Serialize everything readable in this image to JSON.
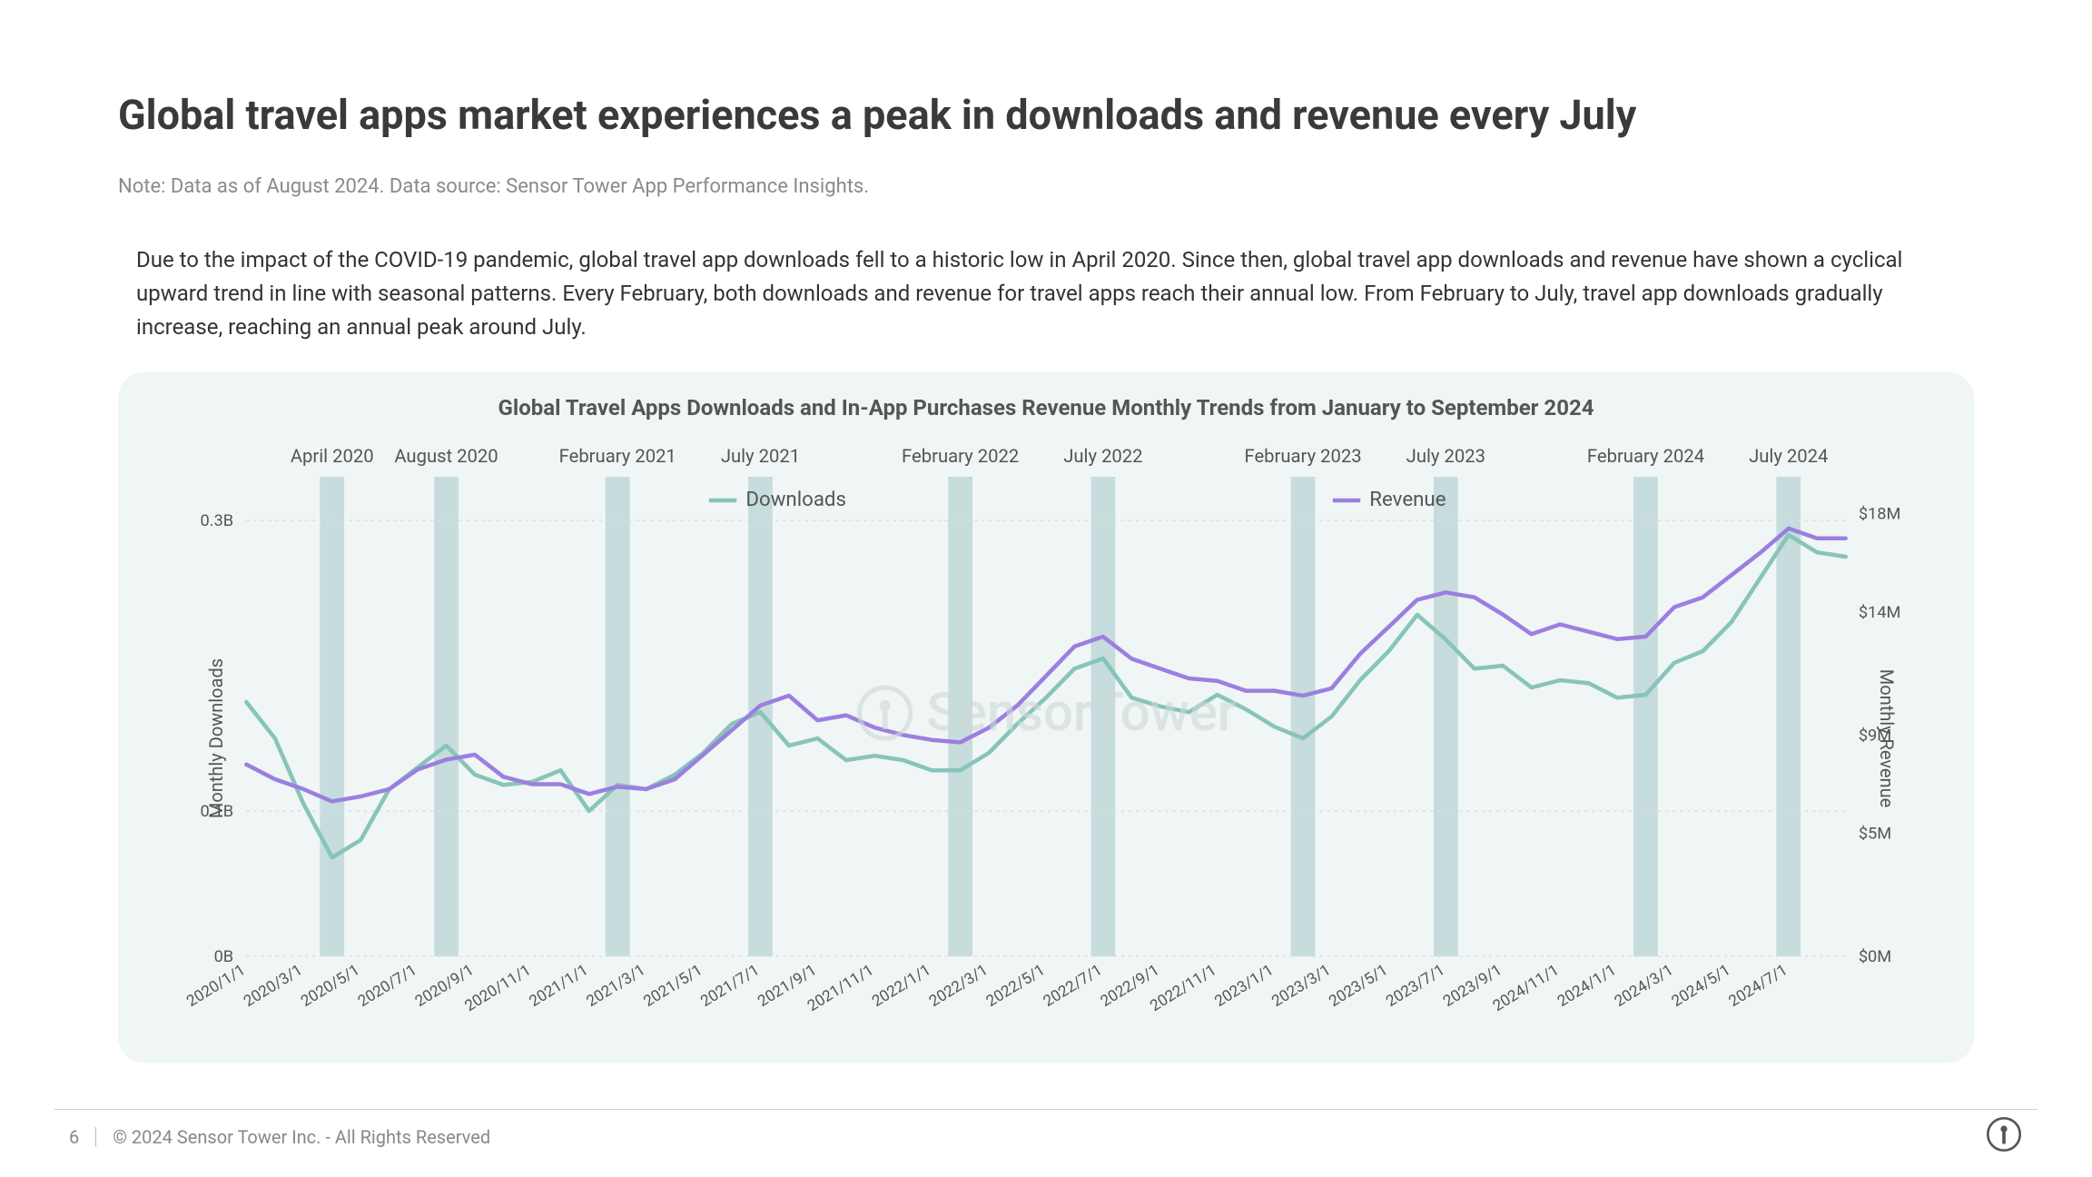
{
  "title": "Global travel apps market experiences a peak in downloads and revenue every July",
  "note": "Note: Data as of August 2024. Data source: Sensor Tower App Performance Insights.",
  "body": "Due to the impact of the COVID-19 pandemic, global travel app downloads fell to a historic low in April 2020. Since then, global travel app downloads and revenue have shown a cyclical upward trend in line with seasonal patterns. Every February, both downloads and revenue for travel apps reach their annual low. From February to July, travel app downloads gradually increase, reaching an annual peak around July.",
  "chart": {
    "type": "dual-axis-line",
    "title": "Global Travel Apps Downloads and In-App Purchases Revenue Monthly Trends from January to September 2024",
    "background_color": "#f0f5f5",
    "grid_color": "#d8e0e0",
    "highlight_bar_color": "#c7dcdc",
    "text_color": "#555555",
    "axis_fontsize": 18,
    "legend_fontsize": 22,
    "series": {
      "downloads": {
        "label": "Downloads",
        "color": "#87c4b9",
        "width": 4.5
      },
      "revenue": {
        "label": "Revenue",
        "color": "#9b7fe0",
        "width": 4.5
      }
    },
    "y_left": {
      "label": "Monthly Downloads",
      "ticks": [
        0,
        0.1,
        0.3
      ],
      "tick_labels": [
        "0B",
        "0.1B",
        "0.3B"
      ],
      "min": 0,
      "max": 0.33
    },
    "y_right": {
      "label": "Monthly Revenue",
      "ticks": [
        0,
        5,
        9,
        14,
        18
      ],
      "tick_labels": [
        "$0M",
        "$5M",
        "$9M",
        "$14M",
        "$18M"
      ],
      "min": 0,
      "max": 19.5
    },
    "x_ticks": [
      "2020/1/1",
      "2020/3/1",
      "2020/5/1",
      "2020/7/1",
      "2020/9/1",
      "2020/11/1",
      "2021/1/1",
      "2021/3/1",
      "2021/5/1",
      "2021/7/1",
      "2021/9/1",
      "2021/11/1",
      "2022/1/1",
      "2022/3/1",
      "2022/5/1",
      "2022/7/1",
      "2022/9/1",
      "2022/11/1",
      "2023/1/1",
      "2023/3/1",
      "2023/5/1",
      "2023/7/1",
      "2023/9/1",
      "2024/11/1",
      "2024/1/1",
      "2024/3/1",
      "2024/5/1",
      "2024/7/1"
    ],
    "top_annotations": [
      {
        "idx": 3,
        "label": "April 2020"
      },
      {
        "idx": 7,
        "label": "August 2020"
      },
      {
        "idx": 13,
        "label": "February 2021"
      },
      {
        "idx": 18,
        "label": "July 2021"
      },
      {
        "idx": 25,
        "label": "February 2022"
      },
      {
        "idx": 30,
        "label": "July 2022"
      },
      {
        "idx": 37,
        "label": "February 2023"
      },
      {
        "idx": 42,
        "label": "July 2023"
      },
      {
        "idx": 49,
        "label": "February 2024"
      },
      {
        "idx": 54,
        "label": "July 2024"
      }
    ],
    "downloads_B": [
      0.175,
      0.15,
      0.105,
      0.068,
      0.08,
      0.115,
      0.13,
      0.145,
      0.125,
      0.118,
      0.12,
      0.128,
      0.1,
      0.118,
      0.115,
      0.125,
      0.14,
      0.16,
      0.168,
      0.145,
      0.15,
      0.135,
      0.138,
      0.135,
      0.128,
      0.128,
      0.14,
      0.16,
      0.178,
      0.198,
      0.205,
      0.178,
      0.172,
      0.168,
      0.18,
      0.17,
      0.158,
      0.15,
      0.165,
      0.19,
      0.21,
      0.235,
      0.218,
      0.198,
      0.2,
      0.185,
      0.19,
      0.188,
      0.178,
      0.18,
      0.202,
      0.21,
      0.23,
      0.26,
      0.29,
      0.278,
      0.275
    ],
    "revenue_M": [
      7.8,
      7.2,
      6.8,
      6.3,
      6.5,
      6.8,
      7.6,
      8.0,
      8.2,
      7.3,
      7.0,
      7.0,
      6.6,
      6.9,
      6.8,
      7.2,
      8.2,
      9.2,
      10.2,
      10.6,
      9.6,
      9.8,
      9.3,
      9.0,
      8.8,
      8.7,
      9.3,
      10.2,
      11.4,
      12.6,
      13.0,
      12.1,
      11.7,
      11.3,
      11.2,
      10.8,
      10.8,
      10.6,
      10.9,
      12.3,
      13.4,
      14.5,
      14.8,
      14.6,
      13.9,
      13.1,
      13.5,
      13.2,
      12.9,
      13.0,
      14.2,
      14.6,
      15.5,
      16.4,
      17.4,
      17.0,
      17.0
    ]
  },
  "watermark": "SensorTower",
  "footer": {
    "page": "6",
    "copyright": "© 2024 Sensor Tower Inc. - All Rights Reserved"
  }
}
